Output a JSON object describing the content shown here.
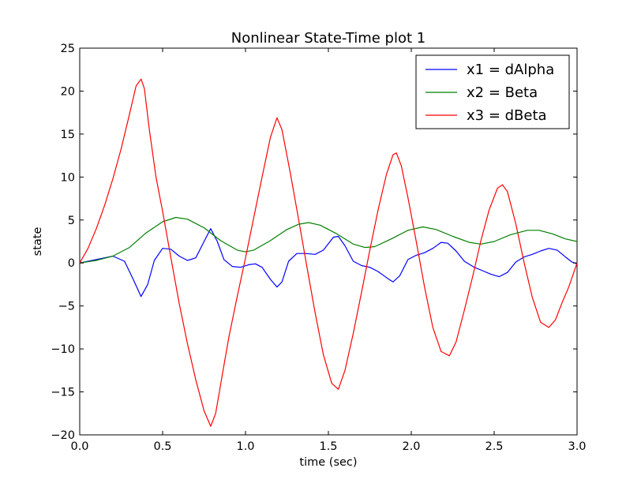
{
  "chart_data": {
    "type": "line",
    "title": "Nonlinear State-Time plot 1",
    "xlabel": "time (sec)",
    "ylabel": "state",
    "xlim": [
      0,
      3
    ],
    "ylim": [
      -20,
      25
    ],
    "xticks": [
      0,
      0.5,
      1,
      1.5,
      2,
      2.5,
      3
    ],
    "xtick_labels": [
      "0.0",
      "0.5",
      "1.0",
      "1.5",
      "2.0",
      "2.5",
      "3.0"
    ],
    "yticks": [
      -20,
      -15,
      -10,
      -5,
      0,
      5,
      10,
      15,
      20,
      25
    ],
    "ytick_labels": [
      "−20",
      "−15",
      "−10",
      "−5",
      "0",
      "5",
      "10",
      "15",
      "20",
      "25"
    ],
    "grid": false,
    "legend_position": "top-right",
    "series": [
      {
        "name": "x1 = dAlpha",
        "color": "#0000ff",
        "points": [
          [
            0,
            0
          ],
          [
            0.1,
            0.4
          ],
          [
            0.2,
            0.8
          ],
          [
            0.27,
            0.2
          ],
          [
            0.32,
            -1.8
          ],
          [
            0.37,
            -3.9
          ],
          [
            0.41,
            -2.5
          ],
          [
            0.45,
            0.3
          ],
          [
            0.5,
            1.7
          ],
          [
            0.55,
            1.6
          ],
          [
            0.6,
            0.8
          ],
          [
            0.65,
            0.3
          ],
          [
            0.7,
            0.6
          ],
          [
            0.75,
            2.5
          ],
          [
            0.79,
            4.0
          ],
          [
            0.83,
            2.5
          ],
          [
            0.87,
            0.4
          ],
          [
            0.92,
            -0.4
          ],
          [
            0.97,
            -0.5
          ],
          [
            1.02,
            -0.2
          ],
          [
            1.06,
            -0.1
          ],
          [
            1.1,
            -0.5
          ],
          [
            1.15,
            -1.9
          ],
          [
            1.19,
            -2.8
          ],
          [
            1.22,
            -2.2
          ],
          [
            1.26,
            0.2
          ],
          [
            1.31,
            1.1
          ],
          [
            1.36,
            1.1
          ],
          [
            1.42,
            1.0
          ],
          [
            1.47,
            1.5
          ],
          [
            1.53,
            3.0
          ],
          [
            1.56,
            3.1
          ],
          [
            1.6,
            2.0
          ],
          [
            1.65,
            0.2
          ],
          [
            1.7,
            -0.3
          ],
          [
            1.75,
            -0.5
          ],
          [
            1.8,
            -1.0
          ],
          [
            1.85,
            -1.7
          ],
          [
            1.89,
            -2.2
          ],
          [
            1.93,
            -1.5
          ],
          [
            1.98,
            0.4
          ],
          [
            2.03,
            0.9
          ],
          [
            2.08,
            1.2
          ],
          [
            2.13,
            1.7
          ],
          [
            2.18,
            2.4
          ],
          [
            2.22,
            2.3
          ],
          [
            2.27,
            1.4
          ],
          [
            2.32,
            0.2
          ],
          [
            2.38,
            -0.5
          ],
          [
            2.43,
            -0.9
          ],
          [
            2.48,
            -1.3
          ],
          [
            2.53,
            -1.6
          ],
          [
            2.58,
            -1.1
          ],
          [
            2.63,
            0.1
          ],
          [
            2.68,
            0.7
          ],
          [
            2.73,
            1.0
          ],
          [
            2.78,
            1.4
          ],
          [
            2.83,
            1.7
          ],
          [
            2.88,
            1.5
          ],
          [
            2.93,
            0.7
          ],
          [
            2.97,
            0.1
          ],
          [
            3.0,
            -0.1
          ]
        ]
      },
      {
        "name": "x2 = Beta",
        "color": "#008000",
        "points": [
          [
            0,
            0
          ],
          [
            0.1,
            0.3
          ],
          [
            0.2,
            0.8
          ],
          [
            0.3,
            1.8
          ],
          [
            0.4,
            3.5
          ],
          [
            0.5,
            4.8
          ],
          [
            0.58,
            5.3
          ],
          [
            0.65,
            5.1
          ],
          [
            0.75,
            4.1
          ],
          [
            0.85,
            2.6
          ],
          [
            0.95,
            1.5
          ],
          [
            1.0,
            1.3
          ],
          [
            1.05,
            1.5
          ],
          [
            1.15,
            2.6
          ],
          [
            1.25,
            3.9
          ],
          [
            1.32,
            4.5
          ],
          [
            1.38,
            4.7
          ],
          [
            1.45,
            4.4
          ],
          [
            1.55,
            3.4
          ],
          [
            1.65,
            2.2
          ],
          [
            1.72,
            1.8
          ],
          [
            1.78,
            1.9
          ],
          [
            1.88,
            2.8
          ],
          [
            1.98,
            3.8
          ],
          [
            2.07,
            4.2
          ],
          [
            2.15,
            3.9
          ],
          [
            2.25,
            3.1
          ],
          [
            2.35,
            2.4
          ],
          [
            2.42,
            2.2
          ],
          [
            2.5,
            2.5
          ],
          [
            2.6,
            3.3
          ],
          [
            2.7,
            3.8
          ],
          [
            2.77,
            3.8
          ],
          [
            2.85,
            3.4
          ],
          [
            2.93,
            2.8
          ],
          [
            3.0,
            2.5
          ]
        ]
      },
      {
        "name": "x3 = dBeta",
        "color": "#ff0000",
        "points": [
          [
            0,
            0
          ],
          [
            0.05,
            1.7
          ],
          [
            0.1,
            4.0
          ],
          [
            0.15,
            6.7
          ],
          [
            0.2,
            9.8
          ],
          [
            0.25,
            13.3
          ],
          [
            0.3,
            17.3
          ],
          [
            0.34,
            20.6
          ],
          [
            0.37,
            21.4
          ],
          [
            0.39,
            20.3
          ],
          [
            0.42,
            15.5
          ],
          [
            0.46,
            10.0
          ],
          [
            0.5,
            6.0
          ],
          [
            0.55,
            0.6
          ],
          [
            0.6,
            -4.7
          ],
          [
            0.65,
            -9.4
          ],
          [
            0.7,
            -13.6
          ],
          [
            0.75,
            -17.2
          ],
          [
            0.79,
            -19.0
          ],
          [
            0.82,
            -17.5
          ],
          [
            0.86,
            -13.0
          ],
          [
            0.9,
            -8.6
          ],
          [
            0.95,
            -3.9
          ],
          [
            1.0,
            0.6
          ],
          [
            1.05,
            5.3
          ],
          [
            1.1,
            10.0
          ],
          [
            1.15,
            14.6
          ],
          [
            1.19,
            16.9
          ],
          [
            1.22,
            15.5
          ],
          [
            1.27,
            10.5
          ],
          [
            1.32,
            5.1
          ],
          [
            1.37,
            -0.4
          ],
          [
            1.42,
            -5.8
          ],
          [
            1.47,
            -10.7
          ],
          [
            1.52,
            -14.0
          ],
          [
            1.56,
            -14.7
          ],
          [
            1.6,
            -12.5
          ],
          [
            1.65,
            -8.2
          ],
          [
            1.7,
            -3.4
          ],
          [
            1.75,
            1.5
          ],
          [
            1.8,
            6.2
          ],
          [
            1.85,
            10.3
          ],
          [
            1.89,
            12.6
          ],
          [
            1.91,
            12.8
          ],
          [
            1.94,
            11.3
          ],
          [
            1.98,
            7.6
          ],
          [
            2.03,
            2.5
          ],
          [
            2.08,
            -2.8
          ],
          [
            2.13,
            -7.5
          ],
          [
            2.18,
            -10.3
          ],
          [
            2.23,
            -10.8
          ],
          [
            2.27,
            -9.2
          ],
          [
            2.32,
            -5.5
          ],
          [
            2.37,
            -1.6
          ],
          [
            2.42,
            2.6
          ],
          [
            2.47,
            6.2
          ],
          [
            2.52,
            8.7
          ],
          [
            2.55,
            9.1
          ],
          [
            2.58,
            8.3
          ],
          [
            2.63,
            4.6
          ],
          [
            2.68,
            0.1
          ],
          [
            2.73,
            -4.0
          ],
          [
            2.78,
            -6.9
          ],
          [
            2.83,
            -7.5
          ],
          [
            2.87,
            -6.6
          ],
          [
            2.91,
            -4.6
          ],
          [
            2.95,
            -2.8
          ],
          [
            3.0,
            0
          ]
        ]
      }
    ]
  }
}
